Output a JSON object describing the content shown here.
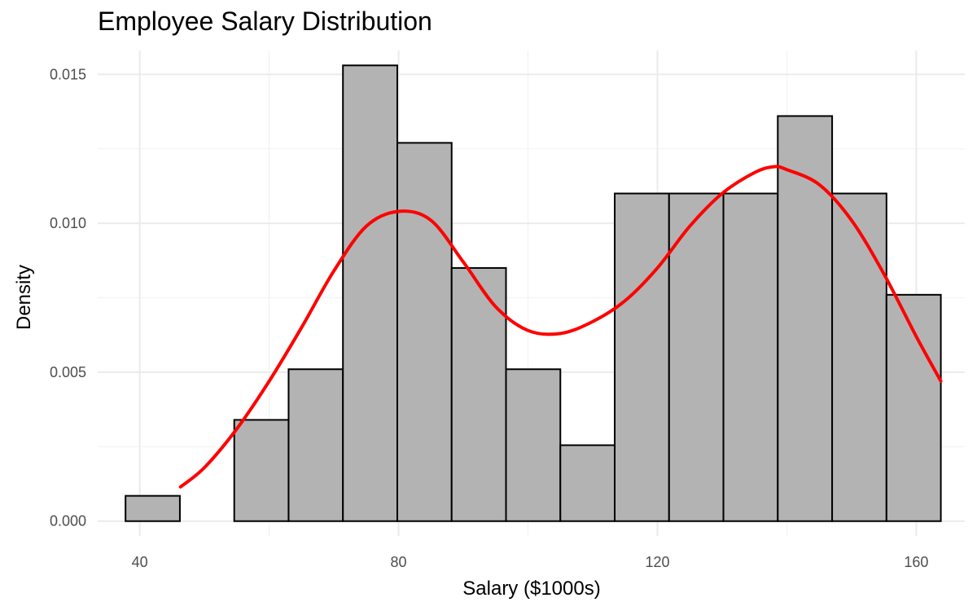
{
  "chart_data": {
    "type": "histogram",
    "title": "Employee Salary Distribution",
    "xlabel": "Salary ($1000s)",
    "ylabel": "Density",
    "xlim": [
      33.5,
      167.5
    ],
    "ylim": [
      -0.0005,
      0.0158
    ],
    "x_ticks": [
      40,
      80,
      120,
      160
    ],
    "y_ticks": [
      0.0,
      0.005,
      0.01,
      0.015
    ],
    "x_tick_labels": [
      "40",
      "80",
      "120",
      "160"
    ],
    "y_tick_labels": [
      "0.000",
      "0.005",
      "0.010",
      "0.015"
    ],
    "grid": true,
    "bins": [
      {
        "x0": 37.8,
        "x1": 46.2,
        "density": 0.00085
      },
      {
        "x0": 46.2,
        "x1": 54.6,
        "density": 0.0
      },
      {
        "x0": 54.6,
        "x1": 63.0,
        "density": 0.0034
      },
      {
        "x0": 63.0,
        "x1": 71.4,
        "density": 0.0051
      },
      {
        "x0": 71.4,
        "x1": 79.8,
        "density": 0.0153
      },
      {
        "x0": 79.8,
        "x1": 88.2,
        "density": 0.0127
      },
      {
        "x0": 88.2,
        "x1": 96.6,
        "density": 0.0085
      },
      {
        "x0": 96.6,
        "x1": 105.0,
        "density": 0.0051
      },
      {
        "x0": 105.0,
        "x1": 113.4,
        "density": 0.00255
      },
      {
        "x0": 113.4,
        "x1": 121.8,
        "density": 0.011
      },
      {
        "x0": 121.8,
        "x1": 130.2,
        "density": 0.011
      },
      {
        "x0": 130.2,
        "x1": 138.6,
        "density": 0.011
      },
      {
        "x0": 138.6,
        "x1": 147.0,
        "density": 0.0136
      },
      {
        "x0": 147.0,
        "x1": 155.4,
        "density": 0.011
      },
      {
        "x0": 155.4,
        "x1": 163.8,
        "density": 0.0076
      }
    ],
    "density_curve": {
      "x": [
        46.3,
        50,
        55,
        60,
        65,
        70,
        75,
        80,
        85,
        90,
        95,
        100,
        105,
        110,
        115,
        120,
        125,
        130,
        135,
        138,
        140,
        145,
        150,
        155,
        160,
        163.8
      ],
      "y": [
        0.00115,
        0.0018,
        0.0031,
        0.0047,
        0.0065,
        0.0084,
        0.0099,
        0.0104,
        0.0101,
        0.0087,
        0.0072,
        0.0064,
        0.0063,
        0.0067,
        0.0074,
        0.0085,
        0.0099,
        0.011,
        0.0117,
        0.0119,
        0.0118,
        0.0113,
        0.0101,
        0.0083,
        0.0062,
        0.0047
      ],
      "color": "#ff0000"
    },
    "bar_fill": "#b3b3b3",
    "bar_outline": "#000000"
  }
}
